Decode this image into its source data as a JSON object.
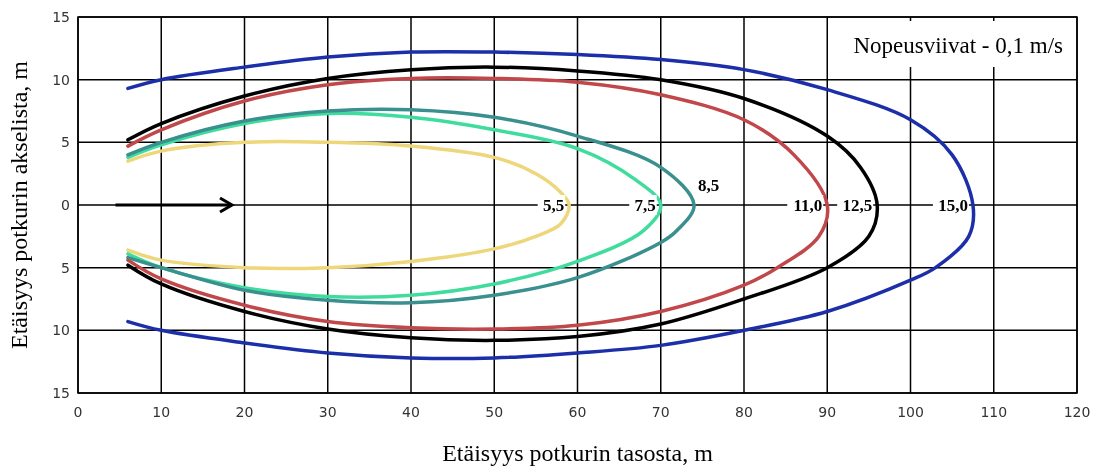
{
  "chart_data": {
    "type": "line",
    "title": "Nopeusviivat - 0,1 m/s",
    "xlabel": "Etäisyys potkurin tasosta, m",
    "ylabel": "Etäisyys potkurin akselista, m",
    "xlim": [
      0,
      120
    ],
    "xticks": [
      0,
      10,
      20,
      30,
      40,
      50,
      60,
      70,
      80,
      90,
      100,
      110,
      120
    ],
    "ylim": [
      -15,
      15
    ],
    "yticks": [
      {
        "value": -15,
        "label": "15"
      },
      {
        "value": -10,
        "label": "10"
      },
      {
        "value": -5,
        "label": "5"
      },
      0,
      5,
      10,
      15
    ],
    "grid": true,
    "line_style": "solid",
    "marker": "none",
    "series": [
      {
        "name": "5,5",
        "color": "#eed67a",
        "x": [
          6,
          10,
          20,
          30,
          40,
          50,
          55,
          58,
          59,
          58,
          55,
          50,
          40,
          30,
          20,
          10,
          6
        ],
        "values": [
          3.5,
          4.3,
          5,
          5,
          4.7,
          3.8,
          2.5,
          1,
          0,
          -1.5,
          -2.5,
          -3.5,
          -4.5,
          -5,
          -5,
          -4.4,
          -3.6
        ]
      },
      {
        "name": "7,5",
        "color": "#3fdc9e",
        "x": [
          6,
          10,
          20,
          30,
          40,
          50,
          60,
          67,
          70,
          68,
          60,
          50,
          40,
          30,
          20,
          10,
          6
        ],
        "values": [
          3.8,
          4.8,
          6.5,
          7.3,
          7,
          6,
          4.5,
          2,
          0,
          -2,
          -4.5,
          -6.3,
          -7.2,
          -7.3,
          -6.6,
          -5,
          -3.9
        ]
      },
      {
        "name": "8,5",
        "color": "#3a8f8f",
        "x": [
          6,
          10,
          20,
          30,
          40,
          50,
          60,
          70,
          74,
          72,
          70,
          60,
          50,
          40,
          30,
          20,
          10,
          6
        ],
        "values": [
          4,
          5,
          6.7,
          7.5,
          7.6,
          7,
          5.5,
          3,
          0,
          -2,
          -3,
          -5.8,
          -7.2,
          -7.8,
          -7.6,
          -6.8,
          -5,
          -4.2
        ]
      },
      {
        "name": "11,0",
        "color": "#c0474a",
        "x": [
          6,
          10,
          20,
          30,
          40,
          50,
          60,
          70,
          80,
          86,
          90,
          89,
          84,
          80,
          70,
          60,
          50,
          40,
          30,
          20,
          10,
          6
        ],
        "values": [
          4.7,
          6,
          8.3,
          9.6,
          10.1,
          10.1,
          9.8,
          8.8,
          6.8,
          4,
          0,
          -2.5,
          -5,
          -6.4,
          -8.5,
          -9.6,
          -9.9,
          -9.8,
          -9.3,
          -8,
          -5.9,
          -4.4
        ]
      },
      {
        "name": "12,5",
        "color": "#000000",
        "x": [
          6,
          10,
          20,
          30,
          40,
          50,
          60,
          70,
          80,
          90,
          94,
          96,
          95,
          90,
          80,
          70,
          60,
          50,
          40,
          30,
          20,
          10,
          6
        ],
        "values": [
          5.2,
          6.5,
          8.7,
          10.1,
          10.8,
          11,
          10.7,
          10,
          8.5,
          5.5,
          3,
          0,
          -2.5,
          -5,
          -7.5,
          -9.5,
          -10.5,
          -10.8,
          -10.6,
          -9.9,
          -8.5,
          -6.3,
          -4.8
        ]
      },
      {
        "name": "15,0",
        "color": "#1c2fa8",
        "x": [
          6,
          10,
          20,
          30,
          40,
          50,
          60,
          70,
          80,
          90,
          100,
          105,
          107.5,
          107,
          103,
          100,
          90,
          80,
          70,
          60,
          50,
          40,
          30,
          20,
          10,
          6
        ],
        "values": [
          9.3,
          10,
          11,
          11.8,
          12.2,
          12.2,
          12,
          11.6,
          10.8,
          9.2,
          6.8,
          4,
          0,
          -2.5,
          -5,
          -6,
          -8.5,
          -10,
          -11.2,
          -11.8,
          -12.2,
          -12.2,
          -11.8,
          -11,
          -10,
          -9.3
        ]
      }
    ]
  }
}
